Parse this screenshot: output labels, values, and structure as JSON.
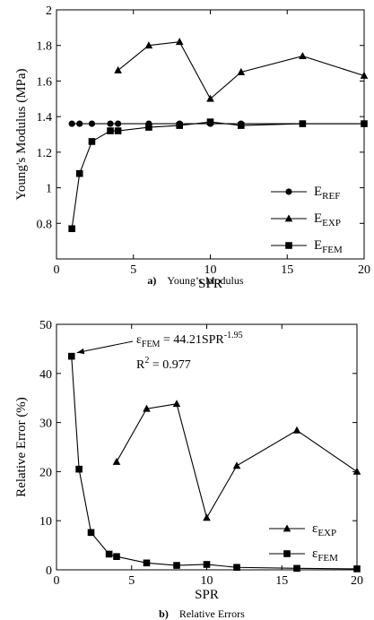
{
  "chart_data": [
    {
      "type": "line",
      "panel_label": "a)",
      "caption": "Young’s Modulus",
      "xlabel": "SPR",
      "ylabel": "Young's Modulus (MPa)",
      "xlim": [
        0,
        20
      ],
      "ylim": [
        0.6,
        2.0
      ],
      "xticks": [
        0,
        5,
        10,
        15,
        20
      ],
      "yticks": [
        0.8,
        1,
        1.2,
        1.4,
        1.6,
        1.8,
        2
      ],
      "ytick_labels": [
        "0.8",
        "1",
        "1.2",
        "1.4",
        "1.6",
        "1.8",
        "2"
      ],
      "legend_position": "bottom-right",
      "series": [
        {
          "name": "E",
          "subscript": "REF",
          "marker": "circle",
          "x": [
            1,
            1.5,
            2.3,
            3.5,
            4,
            6,
            8,
            10,
            12,
            16,
            20
          ],
          "y": [
            1.36,
            1.36,
            1.36,
            1.36,
            1.36,
            1.36,
            1.36,
            1.36,
            1.36,
            1.36,
            1.36
          ]
        },
        {
          "name": "E",
          "subscript": "EXP",
          "marker": "triangle",
          "x": [
            4,
            6,
            8,
            10,
            12,
            16,
            20
          ],
          "y": [
            1.66,
            1.8,
            1.82,
            1.5,
            1.65,
            1.74,
            1.63
          ]
        },
        {
          "name": "E",
          "subscript": "FEM",
          "marker": "square",
          "x": [
            1,
            1.5,
            2.3,
            3.5,
            4,
            6,
            8,
            10,
            12,
            16,
            20
          ],
          "y": [
            0.77,
            1.08,
            1.26,
            1.32,
            1.32,
            1.34,
            1.35,
            1.37,
            1.35,
            1.36,
            1.36
          ]
        }
      ]
    },
    {
      "type": "line",
      "panel_label": "b)",
      "caption": "Relative Errors",
      "xlabel": "SPR",
      "ylabel": "Relative Error (%)",
      "xlim": [
        0,
        20
      ],
      "ylim": [
        0,
        50
      ],
      "xticks": [
        0,
        5,
        10,
        15,
        20
      ],
      "yticks": [
        0,
        10,
        20,
        30,
        40,
        50
      ],
      "ytick_labels": [
        "0",
        "10",
        "20",
        "30",
        "40",
        "50"
      ],
      "legend_position": "bottom-right",
      "annotation": {
        "eq_symbol": "ε",
        "eq_sub": "FEM",
        "eq_mid": " = 44.21SPR",
        "eq_exp": "-1.95",
        "r2_label": "R",
        "r2_exp": "2",
        "r2_value": " = 0.977",
        "arrow_target": {
          "x": 1,
          "y": 43.5
        }
      },
      "series": [
        {
          "name": "ε",
          "subscript": "EXP",
          "marker": "triangle",
          "x": [
            4,
            6,
            8,
            10,
            12,
            16,
            20
          ],
          "y": [
            22,
            32.8,
            33.8,
            10.6,
            21.2,
            28.4,
            20
          ]
        },
        {
          "name": "ε",
          "subscript": "FEM",
          "marker": "square",
          "x": [
            1,
            1.5,
            2.3,
            3.5,
            4,
            6,
            8,
            10,
            12,
            16,
            20
          ],
          "y": [
            43.5,
            20.5,
            7.6,
            3.2,
            2.7,
            1.4,
            0.9,
            1.1,
            0.5,
            0.3,
            0.2
          ]
        }
      ]
    }
  ]
}
